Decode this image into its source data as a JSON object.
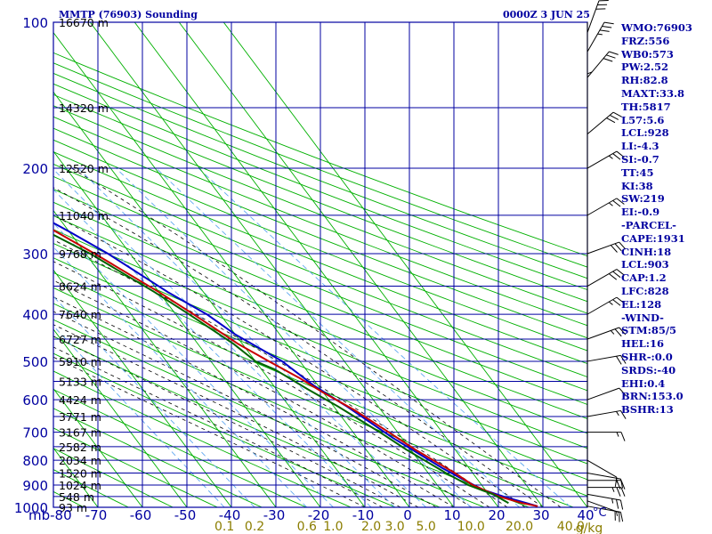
{
  "header": {
    "title": "MMTP (76903) Sounding",
    "time": "0000Z  3 JUN 25"
  },
  "chart_data": {
    "type": "line",
    "title": "MMTP (76903) Sounding",
    "subtitle": "0000Z  3 JUN 25",
    "xlabel": "",
    "ylabel": "mb",
    "x_unit_label": "°C",
    "mixing_unit_label": "g/kg",
    "xlim": [
      -80,
      40
    ],
    "ylim": [
      1000,
      100
    ],
    "yscale": "log",
    "pressure_ticks": [
      100,
      200,
      300,
      400,
      500,
      600,
      700,
      800,
      900,
      1000
    ],
    "temp_ticks": [
      -80,
      -70,
      -60,
      -50,
      -40,
      -30,
      -20,
      -10,
      0,
      10,
      20,
      30,
      40
    ],
    "mixing_ratio_ticks": [
      "0.1",
      "0.2",
      "0.6",
      "1.0",
      "2.0",
      "3.0",
      "5.0",
      "10.0",
      "20.0",
      "40.0"
    ],
    "mixing_ratio_values": [
      0.1,
      0.2,
      0.6,
      1.0,
      2.0,
      3.0,
      5.0,
      10.0,
      20.0,
      40.0
    ],
    "height_labels": [
      {
        "p": 100,
        "label": "16670 m"
      },
      {
        "p": 150,
        "label": "14320 m"
      },
      {
        "p": 200,
        "label": "12520 m"
      },
      {
        "p": 250,
        "label": "11040 m"
      },
      {
        "p": 300,
        "label": "9768 m"
      },
      {
        "p": 350,
        "label": "8624 m"
      },
      {
        "p": 400,
        "label": "7640 m"
      },
      {
        "p": 450,
        "label": "6727 m"
      },
      {
        "p": 500,
        "label": "5910 m"
      },
      {
        "p": 550,
        "label": "5133 m"
      },
      {
        "p": 600,
        "label": "4424 m"
      },
      {
        "p": 650,
        "label": "3771 m"
      },
      {
        "p": 700,
        "label": "3167 m"
      },
      {
        "p": 750,
        "label": "2582 m"
      },
      {
        "p": 800,
        "label": "2034 m"
      },
      {
        "p": 850,
        "label": "1520 m"
      },
      {
        "p": 900,
        "label": "1024 m"
      },
      {
        "p": 950,
        "label": "548 m"
      },
      {
        "p": 1000,
        "label": "93 m"
      }
    ],
    "series": [
      {
        "name": "",
        "color": "#0000c8",
        "points": [
          [
            29,
            995
          ],
          [
            27,
            980
          ],
          [
            23,
            950
          ],
          [
            19.5,
            920
          ],
          [
            17,
            880
          ],
          [
            14,
            830
          ],
          [
            8,
            720
          ],
          [
            3,
            620
          ],
          [
            -1,
            560
          ],
          [
            -4,
            500
          ],
          [
            -10,
            440
          ],
          [
            -13,
            400
          ],
          [
            -18,
            360
          ],
          [
            -25,
            300
          ],
          [
            -30,
            270
          ],
          [
            -36,
            240
          ],
          [
            -43,
            210
          ],
          [
            -52,
            180
          ],
          [
            -60,
            160
          ],
          [
            -68,
            140
          ],
          [
            -74,
            125
          ],
          [
            -78,
            110
          ]
        ]
      },
      {
        "name": "",
        "color": "#c80000",
        "points": [
          [
            29,
            995
          ],
          [
            26,
            980
          ],
          [
            22,
            950
          ],
          [
            18,
            900
          ],
          [
            16,
            850
          ],
          [
            11,
            760
          ],
          [
            8,
            700
          ],
          [
            4,
            630
          ],
          [
            0,
            580
          ],
          [
            -3,
            540
          ],
          [
            -7,
            500
          ],
          [
            -11,
            460
          ],
          [
            -16,
            400
          ],
          [
            -20,
            360
          ],
          [
            -28,
            300
          ],
          [
            -33,
            270
          ],
          [
            -40,
            240
          ],
          [
            -47,
            210
          ],
          [
            -56,
            180
          ],
          [
            -63,
            160
          ],
          [
            -70,
            140
          ],
          [
            -77,
            125
          ],
          [
            -80,
            110
          ],
          [
            -81,
            100
          ]
        ]
      },
      {
        "name": "",
        "color": "#006400",
        "points": [
          [
            23,
            980
          ],
          [
            21,
            940
          ],
          [
            17,
            900
          ],
          [
            14,
            850
          ],
          [
            9,
            760
          ],
          [
            6,
            700
          ],
          [
            1,
            620
          ],
          [
            -3,
            570
          ],
          [
            -7,
            520
          ],
          [
            -10,
            500
          ],
          [
            -12,
            460
          ],
          [
            -17,
            400
          ],
          [
            -21,
            360
          ],
          [
            -29,
            300
          ],
          [
            -35,
            270
          ],
          [
            -41,
            240
          ],
          [
            -49,
            210
          ],
          [
            -58,
            180
          ],
          [
            -65,
            160
          ],
          [
            -72,
            140
          ],
          [
            -79,
            125
          ],
          [
            -83,
            110
          ],
          [
            -84,
            100
          ]
        ]
      }
    ],
    "wind_barbs": [
      {
        "p": 995,
        "dir": 100,
        "spd": 15
      },
      {
        "p": 970,
        "dir": 110,
        "spd": 20
      },
      {
        "p": 940,
        "dir": 100,
        "spd": 25
      },
      {
        "p": 910,
        "dir": 90,
        "spd": 25
      },
      {
        "p": 880,
        "dir": 90,
        "spd": 20
      },
      {
        "p": 850,
        "dir": 100,
        "spd": 15
      },
      {
        "p": 800,
        "dir": 120,
        "spd": 10
      },
      {
        "p": 700,
        "dir": 90,
        "spd": 15
      },
      {
        "p": 650,
        "dir": 80,
        "spd": 15
      },
      {
        "p": 600,
        "dir": 70,
        "spd": 10
      },
      {
        "p": 500,
        "dir": 80,
        "spd": 20
      },
      {
        "p": 450,
        "dir": 70,
        "spd": 25
      },
      {
        "p": 400,
        "dir": 60,
        "spd": 25
      },
      {
        "p": 350,
        "dir": 60,
        "spd": 30
      },
      {
        "p": 300,
        "dir": 70,
        "spd": 30
      },
      {
        "p": 250,
        "dir": 60,
        "spd": 25
      },
      {
        "p": 200,
        "dir": 60,
        "spd": 25
      },
      {
        "p": 170,
        "dir": 50,
        "spd": 30
      },
      {
        "p": 150,
        "dir": 0,
        "spd": 5
      },
      {
        "p": 130,
        "dir": 40,
        "spd": 30
      },
      {
        "p": 115,
        "dir": 30,
        "spd": 35
      },
      {
        "p": 105,
        "dir": 20,
        "spd": 30
      }
    ]
  },
  "indices": [
    "WMO:76903",
    "FRZ:556",
    "WB0:573",
    "PW:2.52",
    "RH:82.8",
    "MAXT:33.8",
    "TH:5817",
    "L57:5.6",
    "LCL:928",
    "LI:-4.3",
    "SI:-0.7",
    "TT:45",
    "KI:38",
    "SW:219",
    "EI:-0.9",
    "-PARCEL-",
    "CAPE:1931",
    "CINH:18",
    "LCL:903",
    "CAP:1.2",
    "LFC:828",
    "EL:128",
    "-WIND-",
    "STM:85/5",
    "HEL:16",
    "SHR-:0.0",
    "SRDS:-40",
    "EHI:0.4",
    "BRN:153.0",
    "BSHR:13"
  ],
  "colors": {
    "grid": "#0000a0",
    "dry_adiabat": "#00b000",
    "isotherm_skew": "#00b000",
    "moist_adiabat": "#000000",
    "mixing_ratio": "#5fa8f0",
    "temperature": "#c80000",
    "dewpoint": "#006400",
    "parcel": "#0000c8",
    "mixing_label": "#8b7d00"
  }
}
